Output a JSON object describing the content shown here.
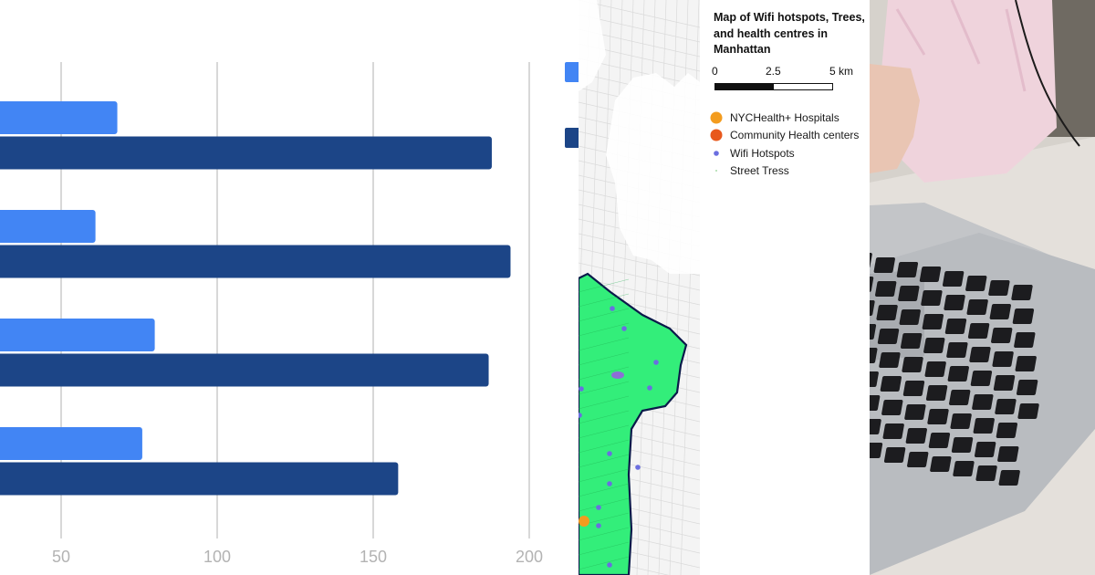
{
  "chart_data": {
    "type": "bar",
    "orientation": "horizontal",
    "categories": [
      "",
      "",
      "",
      ""
    ],
    "series": [
      {
        "values": [
          68,
          61,
          80,
          76
        ],
        "color": "#4285f4"
      },
      {
        "values": [
          188,
          194,
          187,
          158
        ],
        "color": "#1c4587"
      }
    ],
    "xticks": [
      50,
      100,
      150,
      200
    ],
    "xlim": [
      31,
      215
    ],
    "grid": true,
    "legend": "right",
    "title": "",
    "xlabel": "",
    "ylabel": ""
  },
  "map": {
    "title": "Map of Wifi hotspots, Trees, and health centres in Manhattan",
    "scale": {
      "labels": [
        "0",
        "2.5",
        "5 km"
      ]
    },
    "legend": [
      {
        "label": "NYCHealth+ Hospitals",
        "color": "#f39c1f",
        "icon": "large-circle-icon"
      },
      {
        "label": "Community Health centers",
        "color": "#e8581c",
        "icon": "large-circle-icon"
      },
      {
        "label": "Wifi Hotspots",
        "color": "#6b6ee0",
        "icon": "small-dot-icon"
      },
      {
        "label": "Street Tress",
        "color": "#8fd18f",
        "icon": "tiny-dot-icon"
      }
    ],
    "colors": {
      "trees": "#33ee7a",
      "streets": "#dadada",
      "boundary": "#0b1a4a"
    }
  },
  "photo": {
    "subject": "person-using-laptop",
    "colors": {
      "sleeve": "#efd3dc",
      "laptop": "#c3c5c8",
      "keys": "#1c1c1f",
      "desk": "#ddd9d4"
    }
  }
}
